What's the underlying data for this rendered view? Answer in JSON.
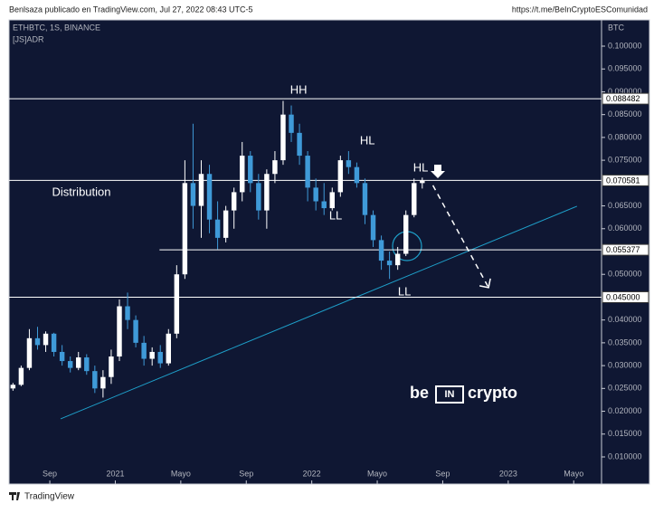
{
  "chart_data": {
    "type": "candlestick",
    "header": "Benlsaza publicado en TradingView.com, Jul 27, 2022 08:43 UTC-5",
    "link": "https://t.me/BeInCryptoESComunidad",
    "symbol": "ETHBTC, 1S, BINANCE",
    "indicator": "[JS]ADR",
    "axis_label": "BTC",
    "footer": "TradingView",
    "watermark": [
      "be",
      "IN",
      "crypto"
    ],
    "xlim": [
      -2.49,
      33.7
    ],
    "ylim": [
      0.00405,
      0.10575
    ],
    "xticks": [
      {
        "value": 0,
        "label": "Sep"
      },
      {
        "value": 4,
        "label": "2021"
      },
      {
        "value": 8,
        "label": "Mayo"
      },
      {
        "value": 12,
        "label": "Sep"
      },
      {
        "value": 16,
        "label": "2022"
      },
      {
        "value": 20,
        "label": "Mayo"
      },
      {
        "value": 24,
        "label": "Sep"
      },
      {
        "value": 28,
        "label": "2023"
      },
      {
        "value": 32,
        "label": "Mayo"
      }
    ],
    "yticks": [
      {
        "value": 0.01,
        "label": "0.010000"
      },
      {
        "value": 0.015,
        "label": "0.015000"
      },
      {
        "value": 0.02,
        "label": "0.020000"
      },
      {
        "value": 0.025,
        "label": "0.025000"
      },
      {
        "value": 0.03,
        "label": "0.030000"
      },
      {
        "value": 0.035,
        "label": "0.035000"
      },
      {
        "value": 0.04,
        "label": "0.040000"
      },
      {
        "value": 0.045,
        "label": "0.045000"
      },
      {
        "value": 0.05,
        "label": "0.050000"
      },
      {
        "value": 0.055,
        "label": "0.055000"
      },
      {
        "value": 0.06,
        "label": "0.060000"
      },
      {
        "value": 0.065,
        "label": "0.065000"
      },
      {
        "value": 0.07,
        "label": "0.070000"
      },
      {
        "value": 0.075,
        "label": "0.075000"
      },
      {
        "value": 0.08,
        "label": "0.080000"
      },
      {
        "value": 0.085,
        "label": "0.085000"
      },
      {
        "value": 0.09,
        "label": "0.090000"
      },
      {
        "value": 0.095,
        "label": "0.095000"
      },
      {
        "value": 0.1,
        "label": "0.100000"
      }
    ],
    "up_color": "#ffffff",
    "down_color": "#3f9ad8",
    "x": [
      -2.25,
      -1.75,
      -1.25,
      -0.75,
      -0.25,
      0.25,
      0.75,
      1.25,
      1.75,
      2.25,
      2.75,
      3.25,
      3.75,
      4.25,
      4.75,
      5.25,
      5.75,
      6.25,
      6.75,
      7.25,
      7.75,
      8.25,
      8.75,
      9.25,
      9.75,
      10.25,
      10.75,
      11.25,
      11.75,
      12.25,
      12.75,
      13.25,
      13.75,
      14.25,
      14.75,
      15.25,
      15.75,
      16.25,
      16.75,
      17.25,
      17.75,
      18.25,
      18.75,
      19.25,
      19.75,
      20.25,
      20.75,
      21.25,
      21.75,
      22.25,
      22.75
    ],
    "open": [
      0.025,
      0.0258,
      0.0295,
      0.036,
      0.0345,
      0.037,
      0.033,
      0.031,
      0.0295,
      0.0318,
      0.0288,
      0.025,
      0.0275,
      0.032,
      0.043,
      0.04,
      0.035,
      0.0315,
      0.033,
      0.0305,
      0.037,
      0.05,
      0.07,
      0.065,
      0.072,
      0.062,
      0.058,
      0.064,
      0.068,
      0.076,
      0.07,
      0.064,
      0.072,
      0.075,
      0.085,
      0.081,
      0.076,
      0.069,
      0.066,
      0.0645,
      0.068,
      0.075,
      0.0735,
      0.07,
      0.063,
      0.0575,
      0.053,
      0.052,
      0.0545,
      0.063,
      0.07
    ],
    "high": [
      0.0262,
      0.03,
      0.038,
      0.0385,
      0.0375,
      0.0372,
      0.0345,
      0.032,
      0.033,
      0.0325,
      0.03,
      0.029,
      0.0335,
      0.0445,
      0.046,
      0.041,
      0.0365,
      0.034,
      0.0345,
      0.038,
      0.052,
      0.075,
      0.083,
      0.075,
      0.074,
      0.066,
      0.065,
      0.069,
      0.079,
      0.077,
      0.072,
      0.073,
      0.077,
      0.088,
      0.087,
      0.083,
      0.077,
      0.071,
      0.07,
      0.069,
      0.076,
      0.077,
      0.0745,
      0.071,
      0.064,
      0.0585,
      0.055,
      0.056,
      0.064,
      0.071,
      0.0712
    ],
    "low": [
      0.0245,
      0.0255,
      0.029,
      0.0335,
      0.033,
      0.032,
      0.03,
      0.0285,
      0.029,
      0.028,
      0.024,
      0.023,
      0.026,
      0.031,
      0.038,
      0.034,
      0.03,
      0.03,
      0.0295,
      0.03,
      0.036,
      0.049,
      0.06,
      0.058,
      0.059,
      0.0555,
      0.057,
      0.06,
      0.066,
      0.068,
      0.062,
      0.06,
      0.07,
      0.074,
      0.079,
      0.074,
      0.066,
      0.064,
      0.063,
      0.064,
      0.067,
      0.072,
      0.069,
      0.061,
      0.056,
      0.051,
      0.049,
      0.051,
      0.054,
      0.0625,
      0.0688
    ],
    "close": [
      0.0258,
      0.0295,
      0.036,
      0.0345,
      0.037,
      0.033,
      0.031,
      0.0295,
      0.0318,
      0.0288,
      0.025,
      0.0275,
      0.032,
      0.043,
      0.04,
      0.035,
      0.0315,
      0.033,
      0.0305,
      0.037,
      0.05,
      0.07,
      0.065,
      0.072,
      0.062,
      0.058,
      0.064,
      0.068,
      0.076,
      0.07,
      0.064,
      0.072,
      0.075,
      0.085,
      0.081,
      0.076,
      0.069,
      0.066,
      0.0645,
      0.068,
      0.075,
      0.0735,
      0.07,
      0.063,
      0.0575,
      0.053,
      0.052,
      0.0545,
      0.063,
      0.07,
      0.0705
    ],
    "levels": [
      {
        "value": 0.088482
      },
      {
        "value": 0.070581
      },
      {
        "value": 0.055377,
        "x_start": 6.7
      },
      {
        "value": 0.045,
        "label": "0.045000"
      }
    ],
    "lines": [
      {
        "x": [
          0.66,
          32.2
        ],
        "y": [
          0.01833,
          0.06492
        ],
        "color": "#1e9fc9"
      },
      {
        "x": [
          23.4,
          26.8
        ],
        "y": [
          0.0695,
          0.0471
        ],
        "color": "#ffffff",
        "dashed": true
      }
    ],
    "annotations": [
      {
        "text": "HH",
        "x": 15.2,
        "y": 0.0903
      },
      {
        "text": "HL",
        "x": 19.4,
        "y": 0.0792
      },
      {
        "text": "HL",
        "x": 22.65,
        "y": 0.0732
      },
      {
        "text": "LL",
        "x": 17.46,
        "y": 0.0627
      },
      {
        "text": "LL",
        "x": 21.66,
        "y": 0.0461
      },
      {
        "text": "Distribution",
        "x": 1.93,
        "y": 0.0679
      }
    ]
  }
}
